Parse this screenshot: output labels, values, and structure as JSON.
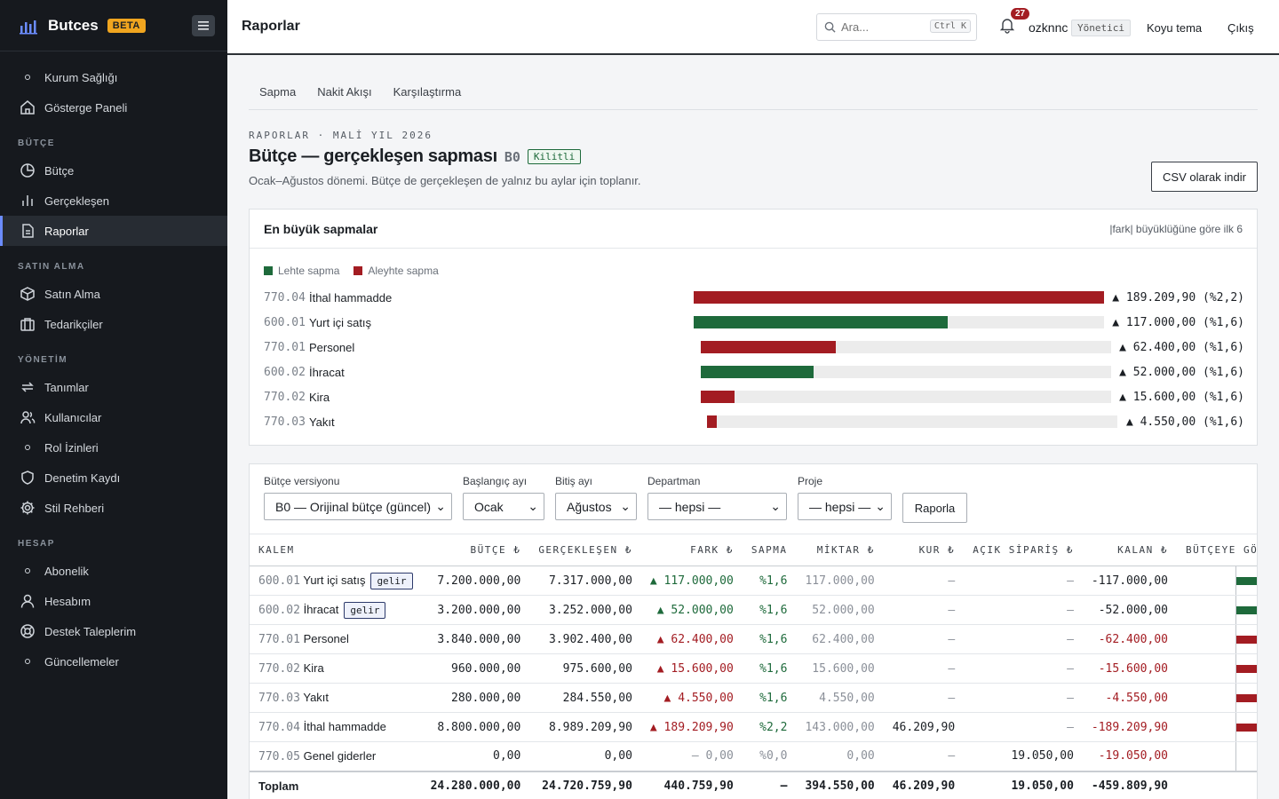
{
  "brand": {
    "name": "Butces",
    "badge": "BETA"
  },
  "sidebar": {
    "top": [
      {
        "label": "Kurum Sağlığı",
        "icon": "dot-icon"
      },
      {
        "label": "Gösterge Paneli",
        "icon": "home-icon"
      }
    ],
    "sections": [
      {
        "title": "BÜTÇE",
        "items": [
          {
            "label": "Bütçe",
            "icon": "pie-icon"
          },
          {
            "label": "Gerçekleşen",
            "icon": "bar-chart-icon"
          },
          {
            "label": "Raporlar",
            "icon": "document-icon",
            "active": true
          }
        ]
      },
      {
        "title": "SATIN ALMA",
        "items": [
          {
            "label": "Satın Alma",
            "icon": "box-icon"
          },
          {
            "label": "Tedarikçiler",
            "icon": "briefcase-icon"
          }
        ]
      },
      {
        "title": "YÖNETİM",
        "items": [
          {
            "label": "Tanımlar",
            "icon": "repeat-icon"
          },
          {
            "label": "Kullanıcılar",
            "icon": "users-icon"
          },
          {
            "label": "Rol İzinleri",
            "icon": "dot-icon"
          },
          {
            "label": "Denetim Kaydı",
            "icon": "shield-icon"
          },
          {
            "label": "Stil Rehberi",
            "icon": "gear-icon"
          }
        ]
      },
      {
        "title": "HESAP",
        "items": [
          {
            "label": "Abonelik",
            "icon": "dot-icon"
          },
          {
            "label": "Hesabım",
            "icon": "user-icon"
          },
          {
            "label": "Destek Taleplerim",
            "icon": "lifebuoy-icon"
          },
          {
            "label": "Güncellemeler",
            "icon": "dot-icon"
          }
        ]
      }
    ]
  },
  "topbar": {
    "title": "Raporlar",
    "search_placeholder": "Ara...",
    "search_kbd": "Ctrl K",
    "notif_count": "27",
    "username": "ozknnc",
    "role": "Yönetici",
    "theme_label": "Koyu tema",
    "logout_label": "Çıkış"
  },
  "tabs": [
    "Sapma",
    "Nakit Akışı",
    "Karşılaştırma"
  ],
  "header": {
    "eyebrow": "RAPORLAR · MALİ YIL 2026",
    "title": "Bütçe — gerçekleşen sapması",
    "version": "B0",
    "locked": "Kilitli",
    "subtitle": "Ocak–Ağustos dönemi. Bütçe de gerçekleşen de yalnız bu aylar için toplanır.",
    "csv_button": "CSV olarak indir"
  },
  "variance_card": {
    "title": "En büyük sapmalar",
    "note": "|fark| büyüklüğüne göre ilk 6",
    "legend_fav": "Lehte sapma",
    "legend_unfav": "Aleyhte sapma",
    "colors": {
      "fav": "#1e6a3b",
      "unfav": "#a31c22"
    },
    "rows": [
      {
        "code": "770.04",
        "name": "İthal hammadde",
        "abs": 189209.9,
        "fav": false,
        "value": "▲ 189.209,90 (%2,2)"
      },
      {
        "code": "600.01",
        "name": "Yurt içi satış",
        "abs": 117000.0,
        "fav": true,
        "value": "▲ 117.000,00 (%1,6)"
      },
      {
        "code": "770.01",
        "name": "Personel",
        "abs": 62400.0,
        "fav": false,
        "value": "▲ 62.400,00 (%1,6)"
      },
      {
        "code": "600.02",
        "name": "İhracat",
        "abs": 52000.0,
        "fav": true,
        "value": "▲ 52.000,00 (%1,6)"
      },
      {
        "code": "770.02",
        "name": "Kira",
        "abs": 15600.0,
        "fav": false,
        "value": "▲ 15.600,00 (%1,6)"
      },
      {
        "code": "770.03",
        "name": "Yakıt",
        "abs": 4550.0,
        "fav": false,
        "value": "▲ 4.550,00 (%1,6)"
      }
    ]
  },
  "filters": {
    "budget_version": {
      "label": "Bütçe versiyonu",
      "value": "B0 — Orijinal bütçe (güncel)"
    },
    "start_month": {
      "label": "Başlangıç ayı",
      "value": "Ocak"
    },
    "end_month": {
      "label": "Bitiş ayı",
      "value": "Ağustos"
    },
    "department": {
      "label": "Departman",
      "value": "— hepsi —"
    },
    "project": {
      "label": "Proje",
      "value": "— hepsi —"
    },
    "report_button": "Raporla"
  },
  "table": {
    "headers": [
      "KALEM",
      "BÜTÇE ₺",
      "GERÇEKLEŞEN ₺",
      "FARK ₺",
      "SAPMA",
      "MİKTAR ₺",
      "KUR ₺",
      "AÇIK SİPARİŞ ₺",
      "KALAN ₺",
      "BÜTÇEYE GÖRE"
    ],
    "rows": [
      {
        "code": "600.01",
        "name": "Yurt içi satış",
        "tag": "gelir",
        "budget": "7.200.000,00",
        "actual": "7.317.000,00",
        "diff": "▲ 117.000,00",
        "diff_class": "pos",
        "pct": "%1,6",
        "pct_class": "pos",
        "qty": "117.000,00",
        "fx": "—",
        "open": "—",
        "remain": "-117.000,00",
        "remain_class": "",
        "bar_fraction": 0.0163,
        "bar_color": "#1e6a3b"
      },
      {
        "code": "600.02",
        "name": "İhracat",
        "tag": "gelir",
        "budget": "3.200.000,00",
        "actual": "3.252.000,00",
        "diff": "▲ 52.000,00",
        "diff_class": "pos",
        "pct": "%1,6",
        "pct_class": "pos",
        "qty": "52.000,00",
        "fx": "—",
        "open": "—",
        "remain": "-52.000,00",
        "remain_class": "",
        "bar_fraction": 0.0163,
        "bar_color": "#1e6a3b"
      },
      {
        "code": "770.01",
        "name": "Personel",
        "tag": "",
        "budget": "3.840.000,00",
        "actual": "3.902.400,00",
        "diff": "▲ 62.400,00",
        "diff_class": "neg",
        "pct": "%1,6",
        "pct_class": "pos",
        "qty": "62.400,00",
        "fx": "—",
        "open": "—",
        "remain": "-62.400,00",
        "remain_class": "neg",
        "bar_fraction": 0.0163,
        "bar_color": "#a31c22"
      },
      {
        "code": "770.02",
        "name": "Kira",
        "tag": "",
        "budget": "960.000,00",
        "actual": "975.600,00",
        "diff": "▲ 15.600,00",
        "diff_class": "neg",
        "pct": "%1,6",
        "pct_class": "pos",
        "qty": "15.600,00",
        "fx": "—",
        "open": "—",
        "remain": "-15.600,00",
        "remain_class": "neg",
        "bar_fraction": 0.0163,
        "bar_color": "#a31c22"
      },
      {
        "code": "770.03",
        "name": "Yakıt",
        "tag": "",
        "budget": "280.000,00",
        "actual": "284.550,00",
        "diff": "▲ 4.550,00",
        "diff_class": "neg",
        "pct": "%1,6",
        "pct_class": "pos",
        "qty": "4.550,00",
        "fx": "—",
        "open": "—",
        "remain": "-4.550,00",
        "remain_class": "neg",
        "bar_fraction": 0.0163,
        "bar_color": "#a31c22"
      },
      {
        "code": "770.04",
        "name": "İthal hammadde",
        "tag": "",
        "budget": "8.800.000,00",
        "actual": "8.989.209,90",
        "diff": "▲ 189.209,90",
        "diff_class": "neg",
        "pct": "%2,2",
        "pct_class": "pos",
        "qty": "143.000,00",
        "fx": "46.209,90",
        "open": "—",
        "remain": "-189.209,90",
        "remain_class": "neg",
        "bar_fraction": 0.0215,
        "bar_color": "#a31c22"
      },
      {
        "code": "770.05",
        "name": "Genel giderler",
        "tag": "",
        "budget": "0,00",
        "actual": "0,00",
        "diff": "— 0,00",
        "diff_class": "muted",
        "pct": "%0,0",
        "pct_class": "muted",
        "qty": "0,00",
        "fx": "—",
        "open": "19.050,00",
        "remain": "-19.050,00",
        "remain_class": "neg",
        "bar_fraction": 0,
        "bar_color": "#a31c22"
      }
    ],
    "total": {
      "label": "Toplam",
      "budget": "24.280.000,00",
      "actual": "24.720.759,90",
      "diff": "440.759,90",
      "pct": "—",
      "qty": "394.550,00",
      "fx": "46.209,90",
      "open": "19.050,00",
      "remain": "-459.809,90"
    }
  }
}
